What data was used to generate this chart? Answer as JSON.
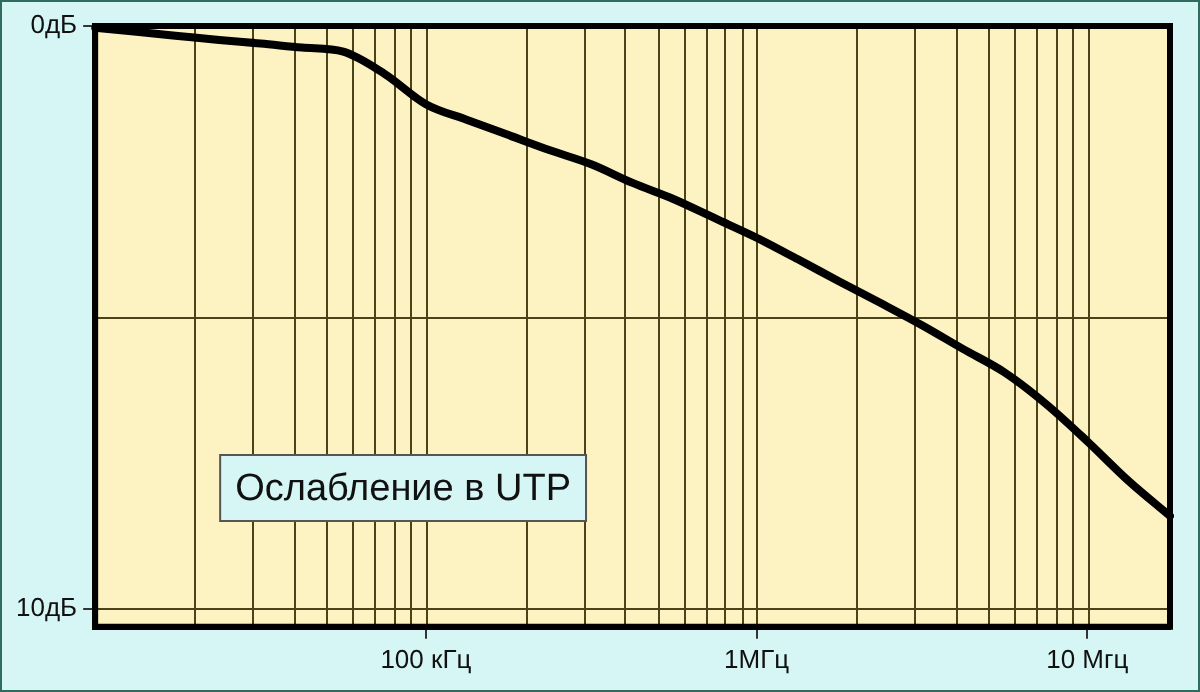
{
  "chart_data": {
    "type": "line",
    "categories": [
      null,
      null,
      null,
      null,
      null,
      null,
      null,
      null,
      "100 кГц",
      null,
      null,
      null,
      null,
      null,
      null,
      null,
      "1МГц",
      null,
      null,
      null,
      null,
      null,
      null,
      null,
      "10 Мгц",
      null,
      null
    ],
    "series": [
      {
        "color": "#000000",
        "values": [
          0.03,
          0.1,
          0.17,
          0.24,
          0.3,
          0.37,
          0.44,
          0.82,
          1.34,
          1.61,
          1.87,
          2.13,
          2.37,
          2.69,
          2.97,
          3.3,
          3.63,
          4.0,
          4.38,
          4.75,
          5.13,
          5.54,
          5.94,
          6.48,
          7.12,
          7.8,
          8.4
        ]
      }
    ],
    "ylim": [
      10.3,
      0
    ],
    "yticks": [
      {
        "value": 0,
        "label": "0дБ"
      },
      {
        "value": 5,
        "label": null
      },
      {
        "value": 10,
        "label": "10дБ"
      }
    ],
    "grid": true,
    "marker": "none",
    "line_style": "solid",
    "annotations": [
      "Ослабление в UTP"
    ]
  }
}
